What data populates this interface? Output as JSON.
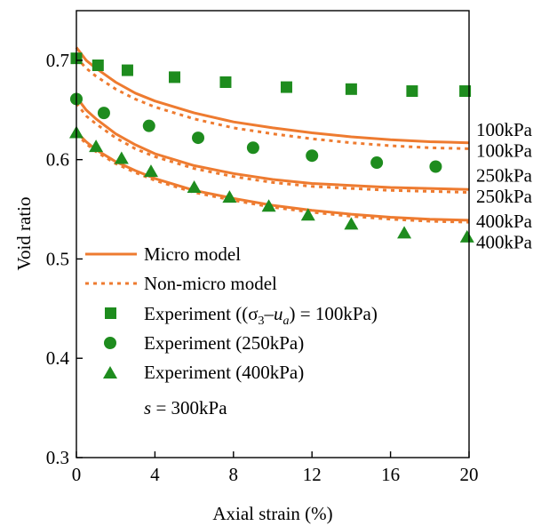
{
  "chart_data": {
    "type": "line",
    "title": "",
    "xlabel": "Axial strain (%)",
    "ylabel": "Void ratio",
    "xlim": [
      0,
      20
    ],
    "ylim": [
      0.3,
      0.75
    ],
    "xticks": [
      "0",
      "4",
      "8",
      "12",
      "16",
      "20"
    ],
    "yticks": [
      "0.3",
      "0.4",
      "0.5",
      "0.6",
      "0.7"
    ],
    "grid": false,
    "legend_position": "bottom-left",
    "colors": {
      "model": "#ee7b30",
      "experiment": "#1e8c1e"
    },
    "legend": {
      "micro": "Micro model",
      "nonmicro": "Non-micro model",
      "exp100_prefix": "Experiment ((",
      "exp100_sigma": "σ",
      "exp100_sub3": "3",
      "exp100_minus": "–",
      "exp100_u": "u",
      "exp100_suba": "a",
      "exp100_suffix": ")  = 100kPa)",
      "exp250": "Experiment (250kPa)",
      "exp400": "Experiment (400kPa)",
      "suction_s": "s",
      "suction_value": " = 300kPa"
    },
    "series": [
      {
        "model": "micro",
        "x": [
          0,
          0.5,
          1,
          2,
          3,
          4,
          6,
          8,
          10,
          12,
          14,
          16,
          18,
          20
        ],
        "y": [
          0.713,
          0.7,
          0.692,
          0.678,
          0.667,
          0.659,
          0.647,
          0.638,
          0.632,
          0.627,
          0.623,
          0.62,
          0.618,
          0.617
        ]
      },
      {
        "model": "nonmicro",
        "x": [
          0,
          0.5,
          1,
          2,
          3,
          4,
          6,
          8,
          10,
          12,
          14,
          16,
          18,
          20
        ],
        "y": [
          0.703,
          0.692,
          0.684,
          0.671,
          0.661,
          0.653,
          0.641,
          0.632,
          0.626,
          0.621,
          0.617,
          0.614,
          0.612,
          0.611
        ]
      },
      {
        "model": "micro",
        "x": [
          0,
          0.5,
          1,
          2,
          3,
          4,
          6,
          8,
          10,
          12,
          14,
          16,
          18,
          20
        ],
        "y": [
          0.663,
          0.65,
          0.641,
          0.626,
          0.615,
          0.606,
          0.594,
          0.586,
          0.58,
          0.576,
          0.574,
          0.572,
          0.571,
          0.57
        ]
      },
      {
        "model": "nonmicro",
        "x": [
          0,
          0.5,
          1,
          2,
          3,
          4,
          6,
          8,
          10,
          12,
          14,
          16,
          18,
          20
        ],
        "y": [
          0.657,
          0.644,
          0.636,
          0.622,
          0.611,
          0.603,
          0.591,
          0.583,
          0.577,
          0.573,
          0.571,
          0.569,
          0.568,
          0.567
        ]
      },
      {
        "model": "micro",
        "x": [
          0,
          0.5,
          1,
          2,
          3,
          4,
          6,
          8,
          10,
          12,
          14,
          16,
          18,
          20
        ],
        "y": [
          0.628,
          0.618,
          0.61,
          0.598,
          0.589,
          0.581,
          0.569,
          0.561,
          0.554,
          0.549,
          0.545,
          0.542,
          0.54,
          0.539
        ]
      },
      {
        "model": "nonmicro",
        "x": [
          0,
          0.5,
          1,
          2,
          3,
          4,
          6,
          8,
          10,
          12,
          14,
          16,
          18,
          20
        ],
        "y": [
          0.626,
          0.616,
          0.608,
          0.596,
          0.587,
          0.579,
          0.567,
          0.559,
          0.552,
          0.547,
          0.543,
          0.54,
          0.538,
          0.537
        ]
      }
    ],
    "experiments": [
      {
        "marker": "square",
        "x": [
          0,
          1.1,
          2.6,
          5.0,
          7.6,
          10.7,
          14.0,
          17.1,
          19.8
        ],
        "y": [
          0.702,
          0.695,
          0.69,
          0.683,
          0.678,
          0.673,
          0.671,
          0.669,
          0.669
        ]
      },
      {
        "marker": "circle",
        "x": [
          0,
          1.4,
          3.7,
          6.2,
          9.0,
          12.0,
          15.3,
          18.3
        ],
        "y": [
          0.661,
          0.647,
          0.634,
          0.622,
          0.612,
          0.604,
          0.597,
          0.593
        ]
      },
      {
        "marker": "triangle",
        "x": [
          0,
          1.0,
          2.3,
          3.8,
          6.0,
          7.8,
          9.8,
          11.8,
          14.0,
          16.7,
          19.9
        ],
        "y": [
          0.627,
          0.613,
          0.601,
          0.588,
          0.572,
          0.562,
          0.553,
          0.544,
          0.535,
          0.526,
          0.522
        ]
      }
    ],
    "end_labels": [
      {
        "text": "100kPa",
        "y": 0.63
      },
      {
        "text": "100kPa",
        "y": 0.609
      },
      {
        "text": "250kPa",
        "y": 0.584
      },
      {
        "text": "250kPa",
        "y": 0.563
      },
      {
        "text": "400kPa",
        "y": 0.538
      },
      {
        "text": "400kPa",
        "y": 0.517
      }
    ]
  }
}
